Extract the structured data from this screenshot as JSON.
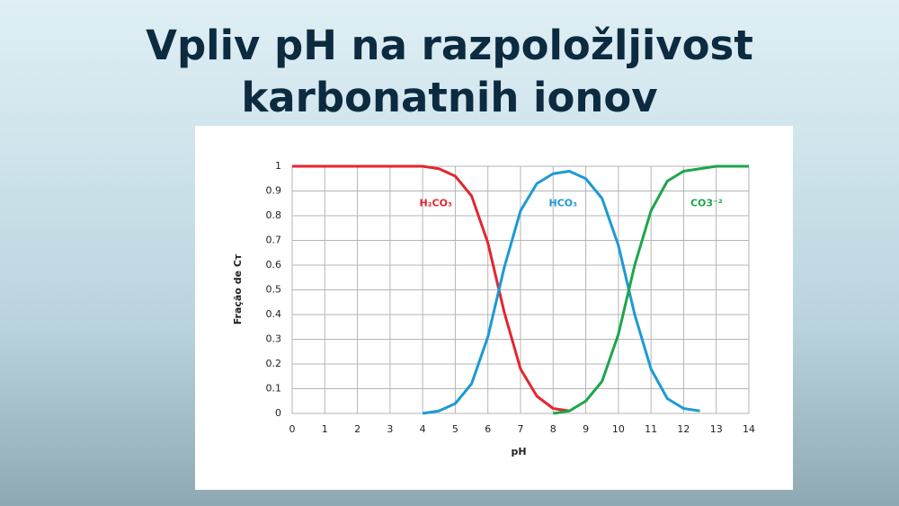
{
  "slide_title": "Vpliv pH na razpoložljivost karbonatnih ionov",
  "chart_data": {
    "type": "line",
    "x_label": "pH",
    "y_label": "Fração de Cᴛ",
    "x": [
      0,
      0.5,
      1,
      1.5,
      2,
      2.5,
      3,
      3.5,
      4,
      4.5,
      5,
      5.5,
      6,
      6.5,
      7,
      7.5,
      8,
      8.5,
      9,
      9.5,
      10,
      10.5,
      11,
      11.5,
      12,
      12.5,
      13,
      13.5,
      14
    ],
    "series": [
      {
        "name": "H₂CO₃",
        "color": "#e3262e",
        "values": [
          1,
          1,
          1,
          1,
          1,
          1,
          1,
          1,
          1,
          0.99,
          0.96,
          0.88,
          0.69,
          0.41,
          0.18,
          0.07,
          0.02,
          0.01,
          null,
          null,
          null,
          null,
          null,
          null,
          null,
          null,
          null,
          null,
          null
        ]
      },
      {
        "name": "HCO₃",
        "color": "#1b9ad6",
        "values": [
          null,
          null,
          null,
          null,
          null,
          null,
          null,
          null,
          0,
          0.01,
          0.04,
          0.12,
          0.31,
          0.59,
          0.82,
          0.93,
          0.97,
          0.98,
          0.95,
          0.87,
          0.68,
          0.4,
          0.18,
          0.06,
          0.02,
          0.01,
          null,
          null,
          null
        ]
      },
      {
        "name": "CO3⁻²",
        "color": "#1ea54b",
        "values": [
          null,
          null,
          null,
          null,
          null,
          null,
          null,
          null,
          null,
          null,
          null,
          null,
          null,
          null,
          null,
          null,
          0,
          0.01,
          0.05,
          0.13,
          0.32,
          0.6,
          0.82,
          0.94,
          0.98,
          0.99,
          1,
          1,
          1
        ]
      }
    ],
    "xlim": [
      0,
      14
    ],
    "xticks": [
      0,
      1,
      2,
      3,
      4,
      5,
      6,
      7,
      8,
      9,
      10,
      11,
      12,
      13,
      14
    ],
    "ylim": [
      0,
      1
    ],
    "yticks": [
      0,
      0.1,
      0.2,
      0.3,
      0.4,
      0.5,
      0.6,
      0.7,
      0.8,
      0.9,
      1
    ],
    "grid": true
  }
}
